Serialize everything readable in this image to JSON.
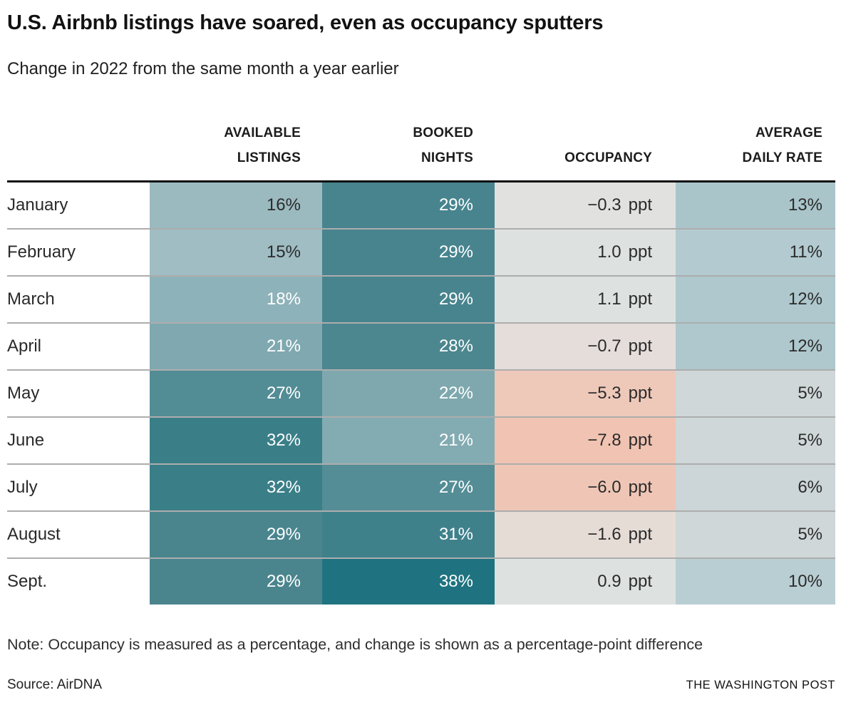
{
  "title": "U.S. Airbnb listings have soared, even as occupancy sputters",
  "subtitle": "Change in 2022 from the same month a year earlier",
  "note": "Note: Occupancy is measured as a percentage, and change is shown as a percentage-point difference",
  "source": "Source: AirDNA",
  "credit": "THE WASHINGTON POST",
  "columns": {
    "available": "AVAILABLE\nLISTINGS",
    "booked": "BOOKED\nNIGHTS",
    "occupancy": "OCCUPANCY",
    "adr": "AVERAGE\nDAILY RATE"
  },
  "palette": {
    "teal_dark": "#1f7380",
    "teal_light": "#9fbdc3",
    "salmon": "#f0c3b2",
    "gray_neutral": "#e1e1df",
    "text_dark": "#2b2b2b",
    "text_light": "#ffffff",
    "rule_gray": "#adadad",
    "rule_black": "#0e0e0e"
  },
  "rows": [
    {
      "month": "January",
      "available": {
        "text": "16%",
        "bg": "#9bbac0",
        "fg": "#2b2b2b"
      },
      "booked": {
        "text": "29%",
        "bg": "#47848e",
        "fg": "#ffffff"
      },
      "occupancy": {
        "num": "−0.3",
        "unit": "ppt",
        "bg": "#e1e1df",
        "fg": "#2b2b2b"
      },
      "adr": {
        "text": "13%",
        "bg": "#a9c5ca",
        "fg": "#2b2b2b"
      }
    },
    {
      "month": "February",
      "available": {
        "text": "15%",
        "bg": "#9fbdc3",
        "fg": "#2b2b2b"
      },
      "booked": {
        "text": "29%",
        "bg": "#47848e",
        "fg": "#ffffff"
      },
      "occupancy": {
        "num": "1.0",
        "unit": "ppt",
        "bg": "#dde1df",
        "fg": "#2b2b2b"
      },
      "adr": {
        "text": "11%",
        "bg": "#b3cbd0",
        "fg": "#2b2b2b"
      }
    },
    {
      "month": "March",
      "available": {
        "text": "18%",
        "bg": "#8eb2b9",
        "fg": "#ffffff"
      },
      "booked": {
        "text": "29%",
        "bg": "#47848e",
        "fg": "#ffffff"
      },
      "occupancy": {
        "num": "1.1",
        "unit": "ppt",
        "bg": "#dde2e0",
        "fg": "#2b2b2b"
      },
      "adr": {
        "text": "12%",
        "bg": "#aec8cd",
        "fg": "#2b2b2b"
      }
    },
    {
      "month": "April",
      "available": {
        "text": "21%",
        "bg": "#7fa8b0",
        "fg": "#ffffff"
      },
      "booked": {
        "text": "28%",
        "bg": "#4c868f",
        "fg": "#ffffff"
      },
      "occupancy": {
        "num": "−0.7",
        "unit": "ppt",
        "bg": "#e4ddda",
        "fg": "#2b2b2b"
      },
      "adr": {
        "text": "12%",
        "bg": "#aec8cd",
        "fg": "#2b2b2b"
      }
    },
    {
      "month": "May",
      "available": {
        "text": "27%",
        "bg": "#528c95",
        "fg": "#ffffff"
      },
      "booked": {
        "text": "22%",
        "bg": "#7ea8ae",
        "fg": "#ffffff"
      },
      "occupancy": {
        "num": "−5.3",
        "unit": "ppt",
        "bg": "#eec9ba",
        "fg": "#2b2b2b"
      },
      "adr": {
        "text": "5%",
        "bg": "#cfd7d8",
        "fg": "#2b2b2b"
      }
    },
    {
      "month": "June",
      "available": {
        "text": "32%",
        "bg": "#3a7f88",
        "fg": "#ffffff"
      },
      "booked": {
        "text": "21%",
        "bg": "#83abb2",
        "fg": "#ffffff"
      },
      "occupancy": {
        "num": "−7.8",
        "unit": "ppt",
        "bg": "#f0c3b2",
        "fg": "#2b2b2b"
      },
      "adr": {
        "text": "5%",
        "bg": "#cfd7d8",
        "fg": "#2b2b2b"
      }
    },
    {
      "month": "July",
      "available": {
        "text": "32%",
        "bg": "#3a7f88",
        "fg": "#ffffff"
      },
      "booked": {
        "text": "27%",
        "bg": "#548d96",
        "fg": "#ffffff"
      },
      "occupancy": {
        "num": "−6.0",
        "unit": "ppt",
        "bg": "#efc6b6",
        "fg": "#2b2b2b"
      },
      "adr": {
        "text": "6%",
        "bg": "#ccd5d7",
        "fg": "#2b2b2b"
      }
    },
    {
      "month": "August",
      "available": {
        "text": "29%",
        "bg": "#4a858e",
        "fg": "#ffffff"
      },
      "booked": {
        "text": "31%",
        "bg": "#3f818b",
        "fg": "#ffffff"
      },
      "occupancy": {
        "num": "−1.6",
        "unit": "ppt",
        "bg": "#e6dcd6",
        "fg": "#2b2b2b"
      },
      "adr": {
        "text": "5%",
        "bg": "#cfd7d8",
        "fg": "#2b2b2b"
      }
    },
    {
      "month": "Sept.",
      "available": {
        "text": "29%",
        "bg": "#4a858e",
        "fg": "#ffffff"
      },
      "booked": {
        "text": "38%",
        "bg": "#1f7380",
        "fg": "#ffffff"
      },
      "occupancy": {
        "num": "0.9",
        "unit": "ppt",
        "bg": "#dde1df",
        "fg": "#2b2b2b"
      },
      "adr": {
        "text": "10%",
        "bg": "#b9ced3",
        "fg": "#2b2b2b"
      }
    }
  ],
  "chart_data": {
    "type": "heatmap",
    "title": "U.S. Airbnb listings have soared, even as occupancy sputters",
    "subtitle": "Change in 2022 from the same month a year earlier",
    "categories": [
      "January",
      "February",
      "March",
      "April",
      "May",
      "June",
      "July",
      "August",
      "Sept."
    ],
    "series": [
      {
        "name": "Available listings (% change)",
        "values": [
          16,
          15,
          18,
          21,
          27,
          32,
          32,
          29,
          29
        ]
      },
      {
        "name": "Booked nights (% change)",
        "values": [
          29,
          29,
          29,
          28,
          22,
          21,
          27,
          31,
          38
        ]
      },
      {
        "name": "Occupancy (ppt change)",
        "values": [
          -0.3,
          1.0,
          1.1,
          -0.7,
          -5.3,
          -7.8,
          -6.0,
          -1.6,
          0.9
        ]
      },
      {
        "name": "Average daily rate (% change)",
        "values": [
          13,
          11,
          12,
          12,
          5,
          5,
          6,
          5,
          10
        ]
      }
    ],
    "legend_position": "none",
    "grid": "row-separators",
    "note": "Note: Occupancy is measured as a percentage, and change is shown as a percentage-point difference",
    "source": "Source: AirDNA"
  }
}
